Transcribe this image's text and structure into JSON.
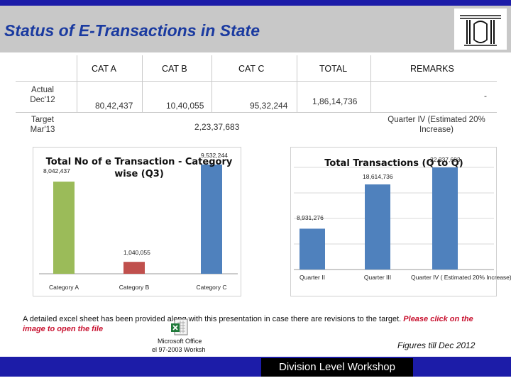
{
  "slide": {
    "title": "Status of E-Transactions in State",
    "footer": "Division Level Workshop",
    "figures_note": "Figures till Dec 2012"
  },
  "summary": {
    "headers": [
      "CAT A",
      "CAT B",
      "CAT C",
      "TOTAL",
      "REMARKS"
    ],
    "rows": [
      {
        "label": "Actual Dec'12",
        "cat_a": "80,42,437",
        "cat_b": "10,40,055",
        "cat_c": "95,32,244",
        "total": "1,86,14,736",
        "remarks": "-"
      },
      {
        "label": "Target Mar'13",
        "target": "2,23,37,683",
        "remarks": "Quarter IV (Estimated 20% Increase)"
      }
    ]
  },
  "note": {
    "text": "A detailed excel sheet has been provided along with this presentation in case there are revisions to the target.",
    "link_text": "Please click on the image to open the file",
    "icon_caption_1": "Microsoft Office",
    "icon_caption_2": "el 97-2003 Worksh"
  },
  "colors": {
    "bar_green": "#9bbb59",
    "bar_red": "#c0504d",
    "bar_blue": "#4f81bd",
    "title_blue": "#1a3aa0",
    "header_band": "#1c1ca8"
  },
  "chart_data": [
    {
      "type": "bar",
      "title": "Total No of e Transaction - Category wise (Q3)",
      "categories": [
        "Category A",
        "Category B",
        "Category C"
      ],
      "values": [
        8042437,
        1040055,
        9532244
      ],
      "value_labels": [
        "8,042,437",
        "1,040,055",
        "9,532,244"
      ],
      "colors": [
        "#9bbb59",
        "#c0504d",
        "#4f81bd"
      ],
      "ylim": [
        0,
        9532244
      ]
    },
    {
      "type": "bar",
      "title": "Total Transactions (Q to Q)",
      "categories": [
        "Quarter II",
        "Quarter III",
        "Quarter IV ( Estimated 20% Increase)"
      ],
      "values": [
        8931276,
        18614736,
        22337683
      ],
      "value_labels": [
        "8,931,276",
        "18,614,736",
        "22,337,683"
      ],
      "colors": [
        "#4f81bd",
        "#4f81bd",
        "#4f81bd"
      ],
      "ylim": [
        0,
        22337683
      ],
      "grid": true
    }
  ]
}
